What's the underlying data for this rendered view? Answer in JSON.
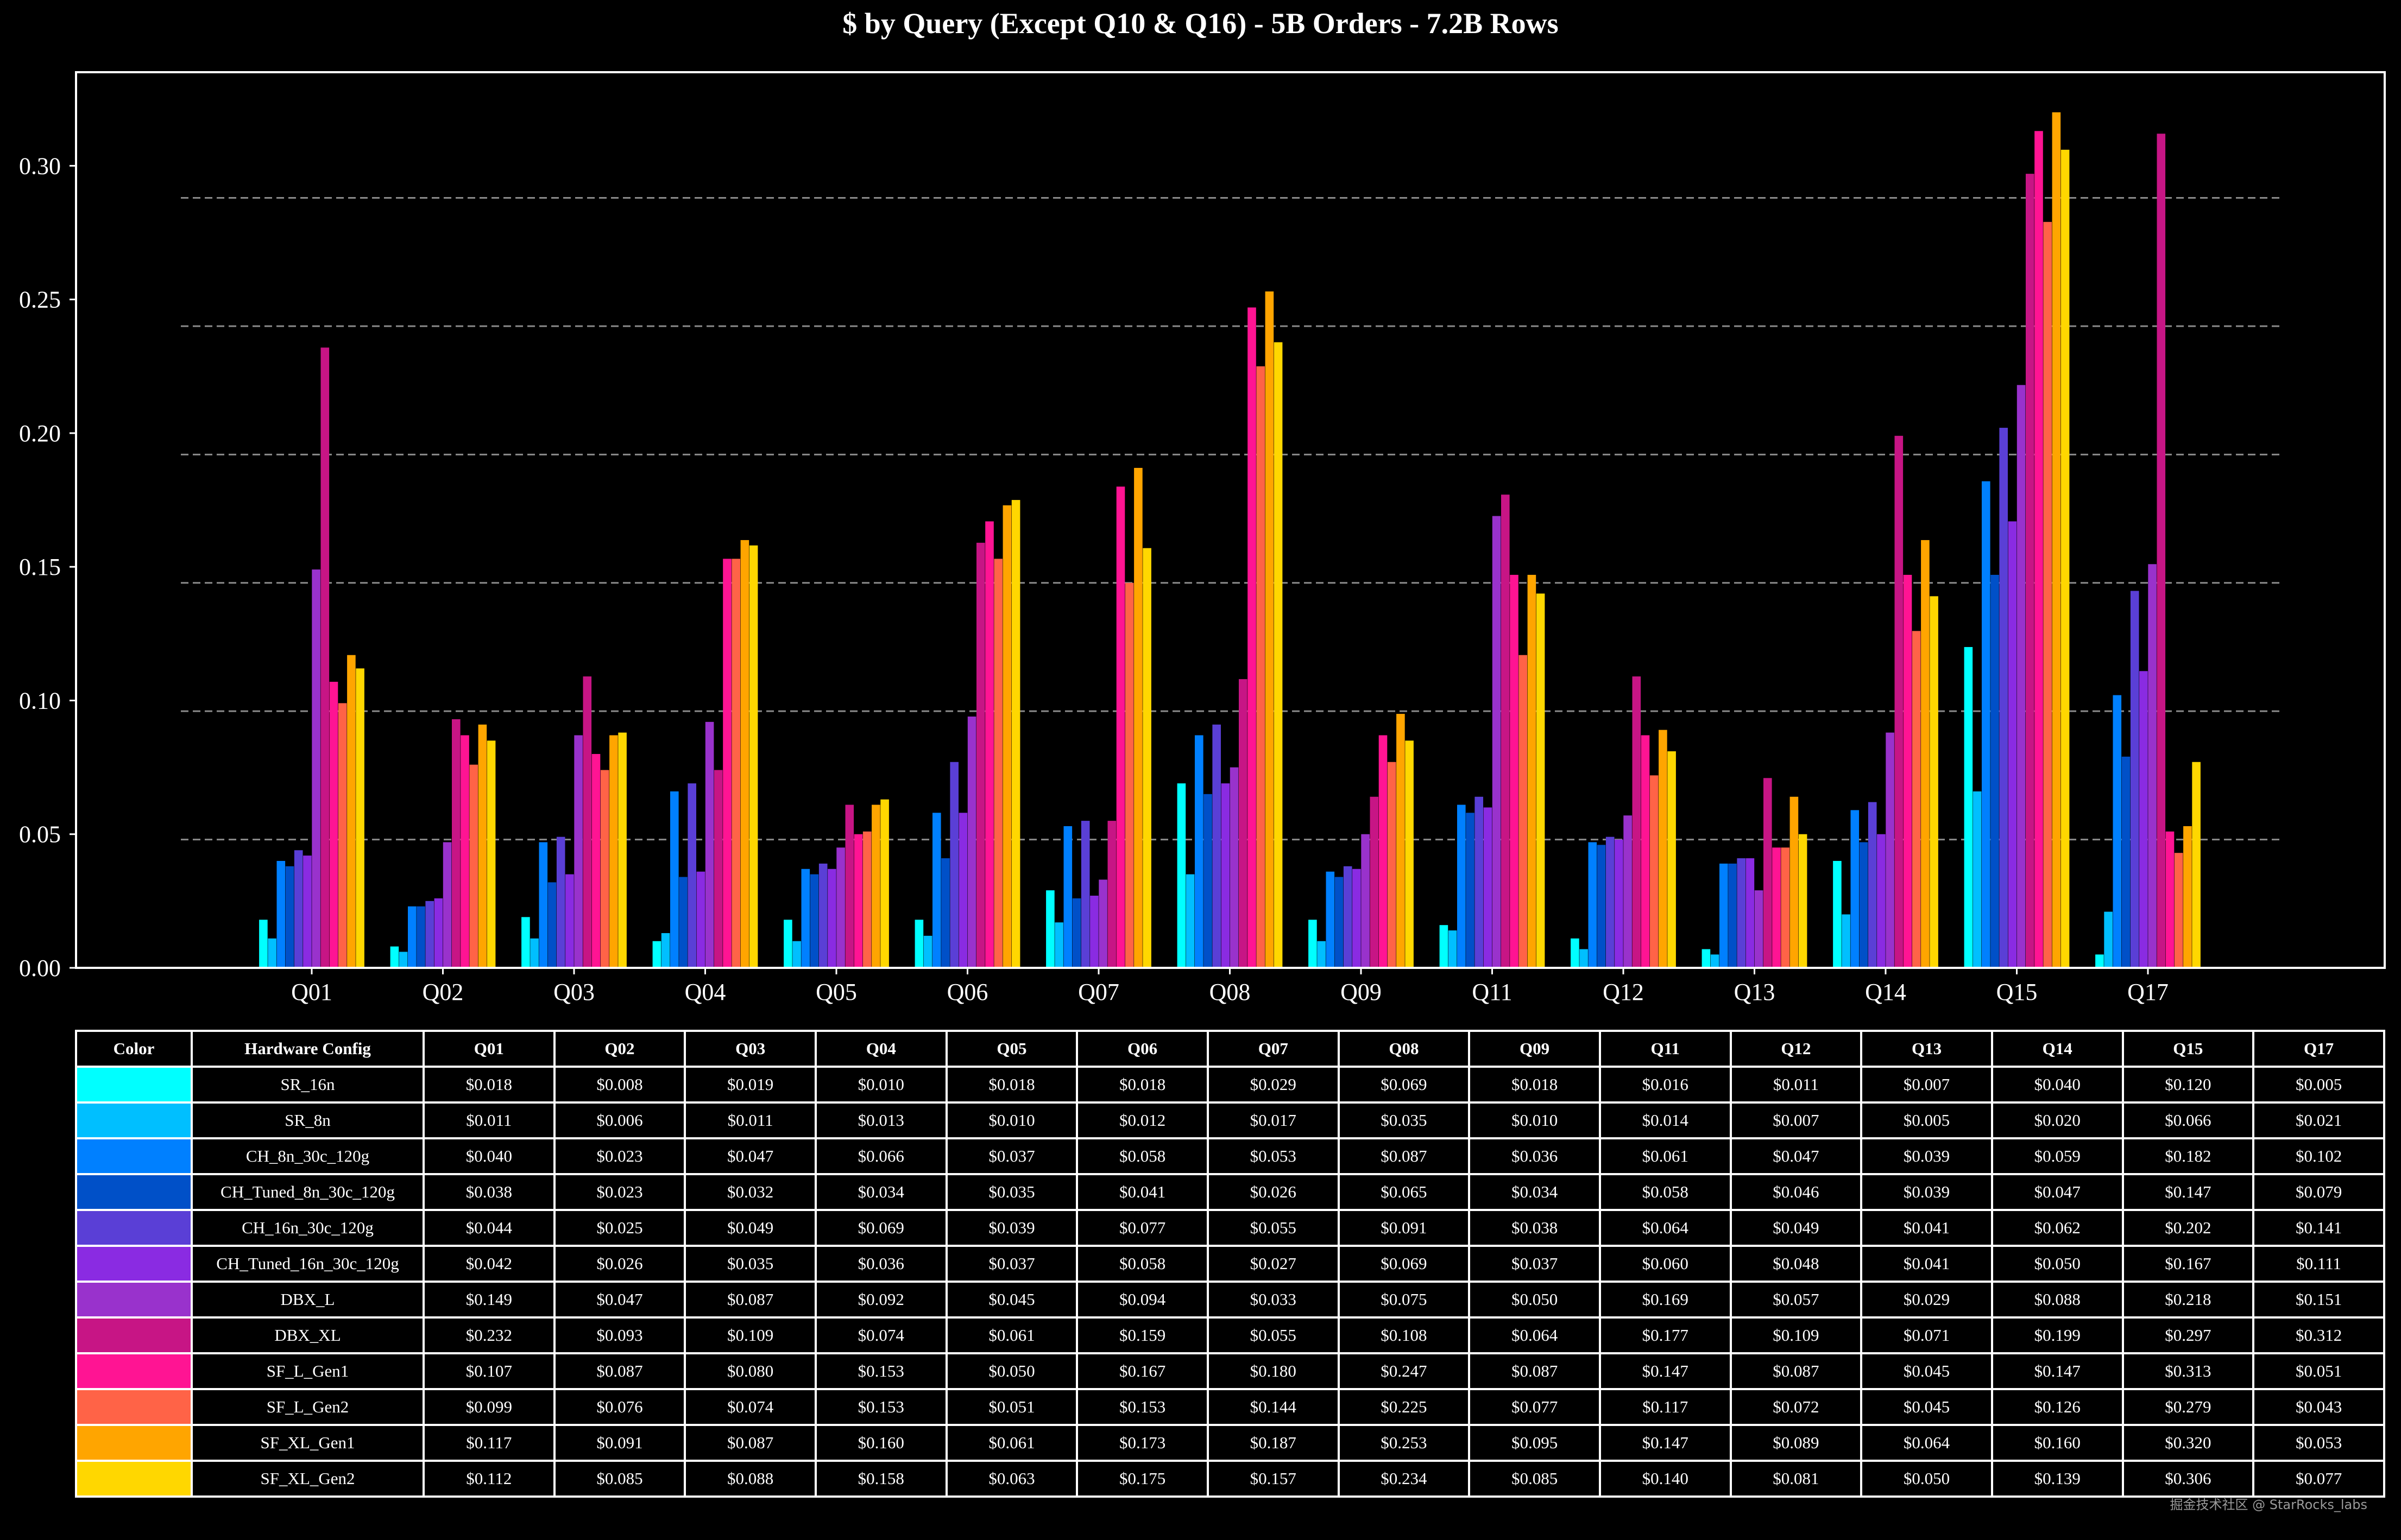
{
  "chart_data": {
    "type": "bar",
    "title": "$ by Query (Except Q10 & Q16) - 5B Orders - 7.2B Rows",
    "xlabel": "",
    "ylabel": "",
    "ylim": [
      0,
      0.335
    ],
    "yticks": [
      "0.00",
      "0.05",
      "0.10",
      "0.15",
      "0.20",
      "0.25",
      "0.30"
    ],
    "grid": "dashed horizontal",
    "categories": [
      "Q01",
      "Q02",
      "Q03",
      "Q04",
      "Q05",
      "Q06",
      "Q07",
      "Q08",
      "Q09",
      "Q11",
      "Q12",
      "Q13",
      "Q14",
      "Q15",
      "Q17"
    ],
    "series": [
      {
        "name": "SR_16n",
        "color": "#00FFFF",
        "values": [
          0.018,
          0.008,
          0.019,
          0.01,
          0.018,
          0.018,
          0.029,
          0.069,
          0.018,
          0.016,
          0.011,
          0.007,
          0.04,
          0.12,
          0.005
        ]
      },
      {
        "name": "SR_8n",
        "color": "#00BFFF",
        "values": [
          0.011,
          0.006,
          0.011,
          0.013,
          0.01,
          0.012,
          0.017,
          0.035,
          0.01,
          0.014,
          0.007,
          0.005,
          0.02,
          0.066,
          0.021
        ]
      },
      {
        "name": "CH_8n_30c_120g",
        "color": "#0080FF",
        "values": [
          0.04,
          0.023,
          0.047,
          0.066,
          0.037,
          0.058,
          0.053,
          0.087,
          0.036,
          0.061,
          0.047,
          0.039,
          0.059,
          0.182,
          0.102
        ]
      },
      {
        "name": "CH_Tuned_8n_30c_120g",
        "color": "#0050C8",
        "values": [
          0.038,
          0.023,
          0.032,
          0.034,
          0.035,
          0.041,
          0.026,
          0.065,
          0.034,
          0.058,
          0.046,
          0.039,
          0.047,
          0.147,
          0.079
        ]
      },
      {
        "name": "CH_16n_30c_120g",
        "color": "#5A3FD6",
        "values": [
          0.044,
          0.025,
          0.049,
          0.069,
          0.039,
          0.077,
          0.055,
          0.091,
          0.038,
          0.064,
          0.049,
          0.041,
          0.062,
          0.202,
          0.141
        ]
      },
      {
        "name": "CH_Tuned_16n_30c_120g",
        "color": "#8A2BE2",
        "values": [
          0.042,
          0.026,
          0.035,
          0.036,
          0.037,
          0.058,
          0.027,
          0.069,
          0.037,
          0.06,
          0.048,
          0.041,
          0.05,
          0.167,
          0.111
        ]
      },
      {
        "name": "DBX_L",
        "color": "#9932CC",
        "values": [
          0.149,
          0.047,
          0.087,
          0.092,
          0.045,
          0.094,
          0.033,
          0.075,
          0.05,
          0.169,
          0.057,
          0.029,
          0.088,
          0.218,
          0.151
        ]
      },
      {
        "name": "DBX_XL",
        "color": "#C71585",
        "values": [
          0.232,
          0.093,
          0.109,
          0.074,
          0.061,
          0.159,
          0.055,
          0.108,
          0.064,
          0.177,
          0.109,
          0.071,
          0.199,
          0.297,
          0.312
        ]
      },
      {
        "name": "SF_L_Gen1",
        "color": "#FF1493",
        "values": [
          0.107,
          0.087,
          0.08,
          0.153,
          0.05,
          0.167,
          0.18,
          0.247,
          0.087,
          0.147,
          0.087,
          0.045,
          0.147,
          0.313,
          0.051
        ]
      },
      {
        "name": "SF_L_Gen2",
        "color": "#FF6347",
        "values": [
          0.099,
          0.076,
          0.074,
          0.153,
          0.051,
          0.153,
          0.144,
          0.225,
          0.077,
          0.117,
          0.072,
          0.045,
          0.126,
          0.279,
          0.043
        ]
      },
      {
        "name": "SF_XL_Gen1",
        "color": "#FFA500",
        "values": [
          0.117,
          0.091,
          0.087,
          0.16,
          0.061,
          0.173,
          0.187,
          0.253,
          0.095,
          0.147,
          0.089,
          0.064,
          0.16,
          0.32,
          0.053
        ]
      },
      {
        "name": "SF_XL_Gen2",
        "color": "#FFD700",
        "values": [
          0.112,
          0.085,
          0.088,
          0.158,
          0.063,
          0.175,
          0.157,
          0.234,
          0.085,
          0.14,
          0.081,
          0.05,
          0.139,
          0.306,
          0.077
        ]
      }
    ]
  },
  "table": {
    "color_header": "Color",
    "config_header": "Hardware Config",
    "rows": [
      {
        "config": "SR_16n",
        "color": "#00FFFF",
        "cells": [
          "$0.018",
          "$0.008",
          "$0.019",
          "$0.010",
          "$0.018",
          "$0.018",
          "$0.029",
          "$0.069",
          "$0.018",
          "$0.016",
          "$0.011",
          "$0.007",
          "$0.040",
          "$0.120",
          "$0.005"
        ]
      },
      {
        "config": "SR_8n",
        "color": "#00BFFF",
        "cells": [
          "$0.011",
          "$0.006",
          "$0.011",
          "$0.013",
          "$0.010",
          "$0.012",
          "$0.017",
          "$0.035",
          "$0.010",
          "$0.014",
          "$0.007",
          "$0.005",
          "$0.020",
          "$0.066",
          "$0.021"
        ]
      },
      {
        "config": "CH_8n_30c_120g",
        "color": "#0080FF",
        "cells": [
          "$0.040",
          "$0.023",
          "$0.047",
          "$0.066",
          "$0.037",
          "$0.058",
          "$0.053",
          "$0.087",
          "$0.036",
          "$0.061",
          "$0.047",
          "$0.039",
          "$0.059",
          "$0.182",
          "$0.102"
        ]
      },
      {
        "config": "CH_Tuned_8n_30c_120g",
        "color": "#0050C8",
        "cells": [
          "$0.038",
          "$0.023",
          "$0.032",
          "$0.034",
          "$0.035",
          "$0.041",
          "$0.026",
          "$0.065",
          "$0.034",
          "$0.058",
          "$0.046",
          "$0.039",
          "$0.047",
          "$0.147",
          "$0.079"
        ]
      },
      {
        "config": "CH_16n_30c_120g",
        "color": "#5A3FD6",
        "cells": [
          "$0.044",
          "$0.025",
          "$0.049",
          "$0.069",
          "$0.039",
          "$0.077",
          "$0.055",
          "$0.091",
          "$0.038",
          "$0.064",
          "$0.049",
          "$0.041",
          "$0.062",
          "$0.202",
          "$0.141"
        ]
      },
      {
        "config": "CH_Tuned_16n_30c_120g",
        "color": "#8A2BE2",
        "cells": [
          "$0.042",
          "$0.026",
          "$0.035",
          "$0.036",
          "$0.037",
          "$0.058",
          "$0.027",
          "$0.069",
          "$0.037",
          "$0.060",
          "$0.048",
          "$0.041",
          "$0.050",
          "$0.167",
          "$0.111"
        ]
      },
      {
        "config": "DBX_L",
        "color": "#9932CC",
        "cells": [
          "$0.149",
          "$0.047",
          "$0.087",
          "$0.092",
          "$0.045",
          "$0.094",
          "$0.033",
          "$0.075",
          "$0.050",
          "$0.169",
          "$0.057",
          "$0.029",
          "$0.088",
          "$0.218",
          "$0.151"
        ]
      },
      {
        "config": "DBX_XL",
        "color": "#C71585",
        "cells": [
          "$0.232",
          "$0.093",
          "$0.109",
          "$0.074",
          "$0.061",
          "$0.159",
          "$0.055",
          "$0.108",
          "$0.064",
          "$0.177",
          "$0.109",
          "$0.071",
          "$0.199",
          "$0.297",
          "$0.312"
        ]
      },
      {
        "config": "SF_L_Gen1",
        "color": "#FF1493",
        "cells": [
          "$0.107",
          "$0.087",
          "$0.080",
          "$0.153",
          "$0.050",
          "$0.167",
          "$0.180",
          "$0.247",
          "$0.087",
          "$0.147",
          "$0.087",
          "$0.045",
          "$0.147",
          "$0.313",
          "$0.051"
        ]
      },
      {
        "config": "SF_L_Gen2",
        "color": "#FF6347",
        "cells": [
          "$0.099",
          "$0.076",
          "$0.074",
          "$0.153",
          "$0.051",
          "$0.153",
          "$0.144",
          "$0.225",
          "$0.077",
          "$0.117",
          "$0.072",
          "$0.045",
          "$0.126",
          "$0.279",
          "$0.043"
        ]
      },
      {
        "config": "SF_XL_Gen1",
        "color": "#FFA500",
        "cells": [
          "$0.117",
          "$0.091",
          "$0.087",
          "$0.160",
          "$0.061",
          "$0.173",
          "$0.187",
          "$0.253",
          "$0.095",
          "$0.147",
          "$0.089",
          "$0.064",
          "$0.160",
          "$0.320",
          "$0.053"
        ]
      },
      {
        "config": "SF_XL_Gen2",
        "color": "#FFD700",
        "cells": [
          "$0.112",
          "$0.085",
          "$0.088",
          "$0.158",
          "$0.063",
          "$0.175",
          "$0.157",
          "$0.234",
          "$0.085",
          "$0.140",
          "$0.081",
          "$0.050",
          "$0.139",
          "$0.306",
          "$0.077"
        ]
      }
    ]
  },
  "watermark": "掘金技术社区 @ StarRocks_labs"
}
